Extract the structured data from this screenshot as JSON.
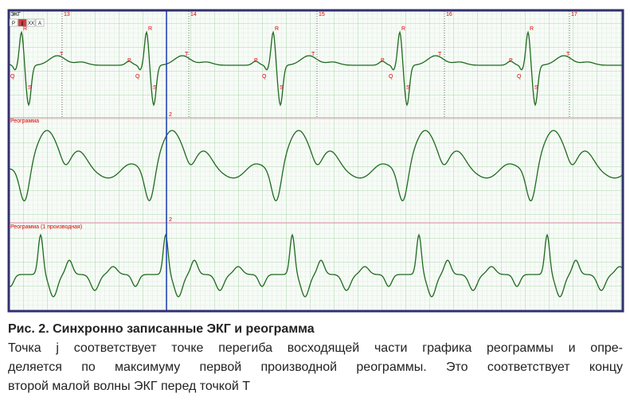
{
  "panel": {
    "title": "ЭКГ",
    "toolbar": [
      "P",
      "||",
      "XX",
      "A"
    ],
    "labels": {
      "reo": "Реограмма",
      "deriv": "Реограмма (1 производная)"
    },
    "time_marks": [
      "13",
      "14",
      "15",
      "16",
      "17"
    ],
    "sync_label": "2",
    "markers": {
      "r": "R",
      "s": "S",
      "q": "Q",
      "p": "P",
      "t": "T",
      "j": "j"
    }
  },
  "caption": {
    "title": "Рис. 2. Синхронно записанные ЭКГ и реограмма",
    "lines": [
      "Точка j соответствует точке перегиба восходящей части графика реограммы и опре-",
      "деляется по максимуму первой производной реограммы. Это соответствует концу",
      "второй малой волны ЭКГ перед точкой Т"
    ]
  }
}
